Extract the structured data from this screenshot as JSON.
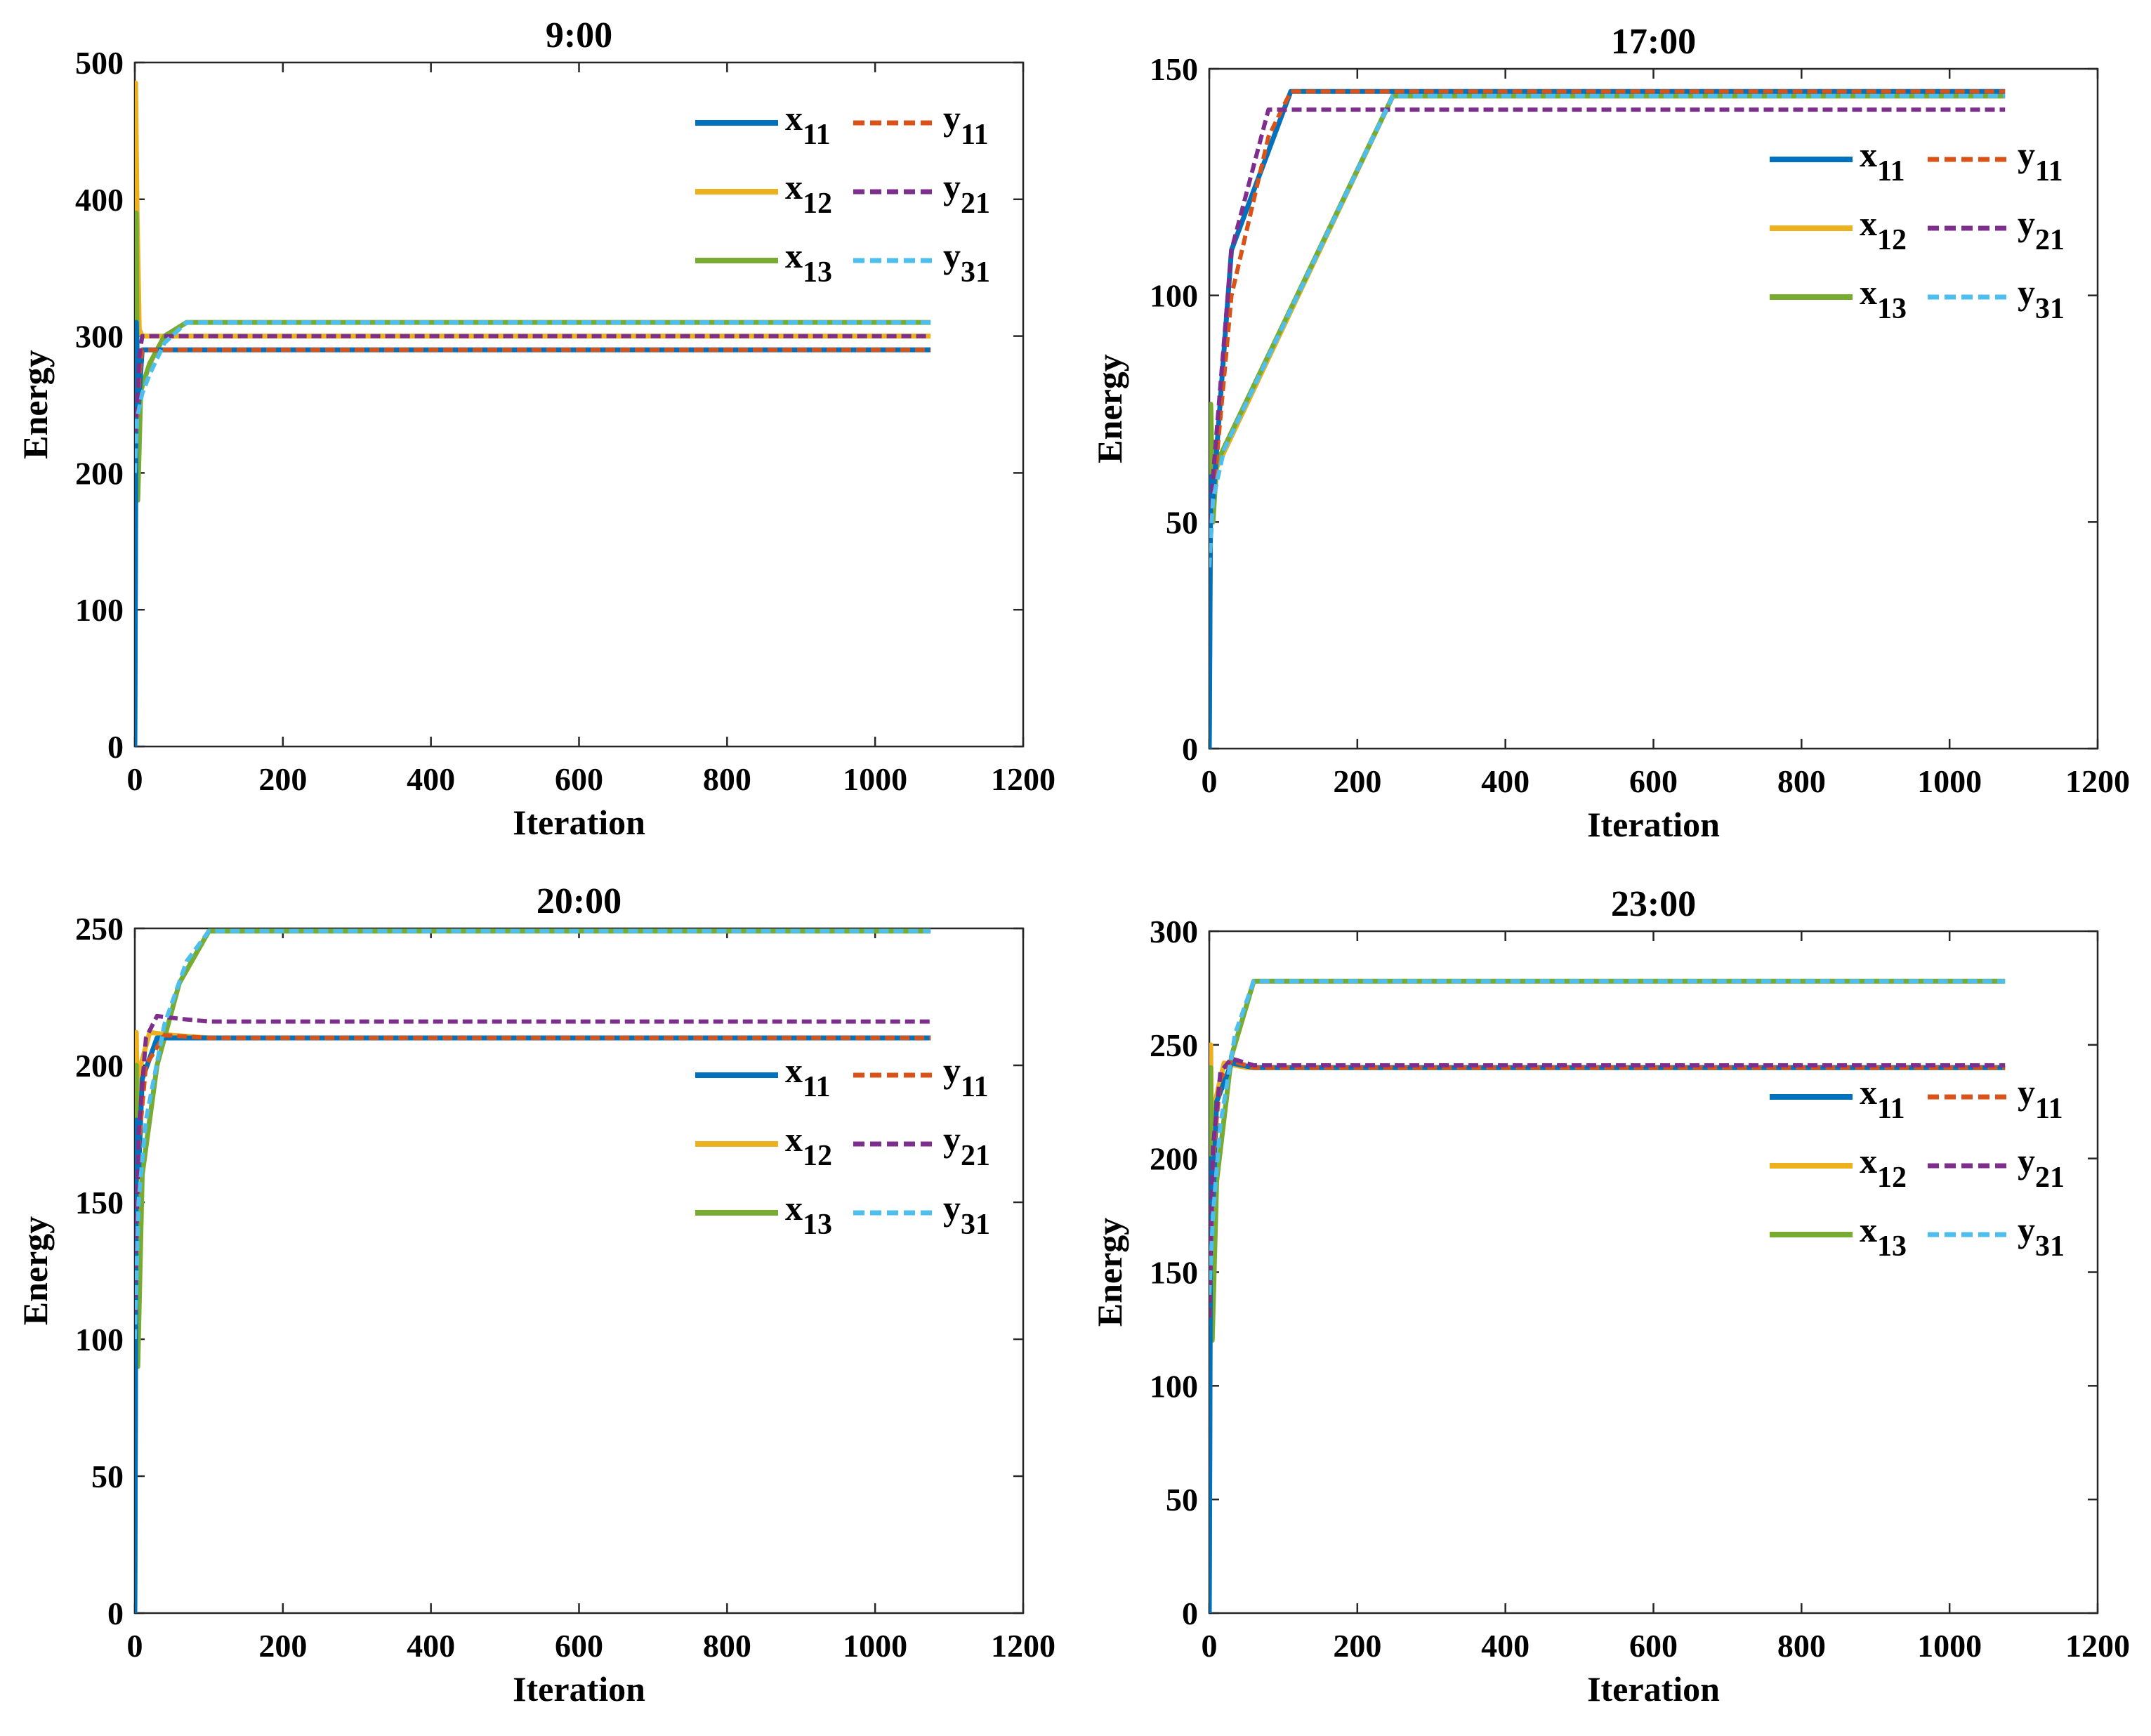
{
  "colors": {
    "x11": "#0072BD",
    "x12": "#EDB120",
    "x13": "#77AC30",
    "y11": "#D95319",
    "y21": "#7E2F8E",
    "y31": "#4DBEEE"
  },
  "chart_data": [
    {
      "type": "line",
      "title": "9:00",
      "xlabel": "Iteration",
      "ylabel": "Energy",
      "xlim": [
        0,
        1200
      ],
      "ylim": [
        0,
        500
      ],
      "xticks": [
        0,
        200,
        400,
        600,
        800,
        1000,
        1200
      ],
      "yticks": [
        0,
        100,
        200,
        300,
        400,
        500
      ],
      "legend_position": "top-right",
      "series": [
        {
          "key": "x12",
          "name": "x",
          "sub": "12",
          "style": "solid",
          "points": [
            [
              0,
              0
            ],
            [
              1,
              485
            ],
            [
              3,
              390
            ],
            [
              6,
              305
            ],
            [
              10,
              300
            ],
            [
              1075,
              300
            ]
          ]
        },
        {
          "key": "x13",
          "name": "x",
          "sub": "13",
          "style": "solid",
          "points": [
            [
              0,
              0
            ],
            [
              2,
              390
            ],
            [
              4,
              180
            ],
            [
              8,
              260
            ],
            [
              20,
              280
            ],
            [
              40,
              300
            ],
            [
              70,
              310
            ],
            [
              1075,
              310
            ]
          ]
        },
        {
          "key": "x11",
          "name": "x",
          "sub": "11",
          "style": "solid",
          "points": [
            [
              0,
              0
            ],
            [
              2,
              310
            ],
            [
              5,
              250
            ],
            [
              10,
              290
            ],
            [
              1075,
              290
            ]
          ]
        },
        {
          "key": "y11",
          "name": "y",
          "sub": "11",
          "style": "dashed",
          "points": [
            [
              0,
              230
            ],
            [
              3,
              240
            ],
            [
              6,
              270
            ],
            [
              10,
              290
            ],
            [
              1075,
              290
            ]
          ]
        },
        {
          "key": "y21",
          "name": "y",
          "sub": "21",
          "style": "dashed",
          "points": [
            [
              0,
              230
            ],
            [
              3,
              250
            ],
            [
              6,
              285
            ],
            [
              10,
              300
            ],
            [
              1075,
              300
            ]
          ]
        },
        {
          "key": "y31",
          "name": "y",
          "sub": "31",
          "style": "dashed",
          "points": [
            [
              0,
              200
            ],
            [
              3,
              240
            ],
            [
              10,
              258
            ],
            [
              20,
              272
            ],
            [
              40,
              295
            ],
            [
              70,
              310
            ],
            [
              1075,
              310
            ]
          ]
        }
      ]
    },
    {
      "type": "line",
      "title": "17:00",
      "xlabel": "Iteration",
      "ylabel": "Energy",
      "xlim": [
        0,
        1200
      ],
      "ylim": [
        0,
        150
      ],
      "xticks": [
        0,
        200,
        400,
        600,
        800,
        1000,
        1200
      ],
      "yticks": [
        0,
        50,
        100,
        150
      ],
      "legend_position": "right",
      "series": [
        {
          "key": "x12",
          "name": "x",
          "sub": "12",
          "style": "solid",
          "points": [
            [
              0,
              0
            ],
            [
              2,
              75
            ],
            [
              5,
              52
            ],
            [
              10,
              62
            ],
            [
              248,
              144
            ],
            [
              1075,
              144
            ]
          ]
        },
        {
          "key": "x13",
          "name": "x",
          "sub": "13",
          "style": "solid",
          "points": [
            [
              0,
              0
            ],
            [
              2,
              76
            ],
            [
              5,
              50
            ],
            [
              10,
              63
            ],
            [
              248,
              144
            ],
            [
              1075,
              144
            ]
          ]
        },
        {
          "key": "x11",
          "name": "x",
          "sub": "11",
          "style": "solid",
          "points": [
            [
              0,
              0
            ],
            [
              2,
              60
            ],
            [
              5,
              55
            ],
            [
              30,
              110
            ],
            [
              110,
              145
            ],
            [
              1075,
              145
            ]
          ]
        },
        {
          "key": "y11",
          "name": "y",
          "sub": "11",
          "style": "dashed",
          "points": [
            [
              0,
              40
            ],
            [
              5,
              55
            ],
            [
              30,
              100
            ],
            [
              80,
              135
            ],
            [
              110,
              145
            ],
            [
              1075,
              145
            ]
          ]
        },
        {
          "key": "y21",
          "name": "y",
          "sub": "21",
          "style": "dashed",
          "points": [
            [
              0,
              40
            ],
            [
              5,
              60
            ],
            [
              30,
              110
            ],
            [
              80,
              141
            ],
            [
              1075,
              141
            ]
          ]
        },
        {
          "key": "y31",
          "name": "y",
          "sub": "31",
          "style": "dashed",
          "points": [
            [
              0,
              40
            ],
            [
              5,
              55
            ],
            [
              20,
              66
            ],
            [
              248,
              144
            ],
            [
              1075,
              144
            ]
          ]
        }
      ]
    },
    {
      "type": "line",
      "title": "20:00",
      "xlabel": "Iteration",
      "ylabel": "Energy",
      "xlim": [
        0,
        1200
      ],
      "ylim": [
        0,
        250
      ],
      "xticks": [
        0,
        200,
        400,
        600,
        800,
        1000,
        1200
      ],
      "yticks": [
        0,
        50,
        100,
        150,
        200,
        250
      ],
      "legend_position": "right",
      "series": [
        {
          "key": "x12",
          "name": "x",
          "sub": "12",
          "style": "solid",
          "points": [
            [
              0,
              0
            ],
            [
              2,
              212
            ],
            [
              4,
              170
            ],
            [
              8,
              200
            ],
            [
              20,
              212
            ],
            [
              50,
              211
            ],
            [
              100,
              210
            ],
            [
              1075,
              210
            ]
          ]
        },
        {
          "key": "x13",
          "name": "x",
          "sub": "13",
          "style": "solid",
          "points": [
            [
              0,
              0
            ],
            [
              2,
              200
            ],
            [
              4,
              90
            ],
            [
              10,
              160
            ],
            [
              30,
              200
            ],
            [
              60,
              230
            ],
            [
              100,
              249
            ],
            [
              1075,
              249
            ]
          ]
        },
        {
          "key": "x11",
          "name": "x",
          "sub": "11",
          "style": "solid",
          "points": [
            [
              0,
              0
            ],
            [
              2,
              180
            ],
            [
              5,
              160
            ],
            [
              10,
              195
            ],
            [
              30,
              210
            ],
            [
              1075,
              210
            ]
          ]
        },
        {
          "key": "y11",
          "name": "y",
          "sub": "11",
          "style": "dashed",
          "points": [
            [
              0,
              110
            ],
            [
              5,
              170
            ],
            [
              15,
              200
            ],
            [
              40,
              211
            ],
            [
              100,
              210
            ],
            [
              1075,
              210
            ]
          ]
        },
        {
          "key": "y21",
          "name": "y",
          "sub": "21",
          "style": "dashed",
          "points": [
            [
              0,
              110
            ],
            [
              5,
              175
            ],
            [
              15,
              210
            ],
            [
              30,
              218
            ],
            [
              60,
              217
            ],
            [
              100,
              216
            ],
            [
              1075,
              216
            ]
          ]
        },
        {
          "key": "y31",
          "name": "y",
          "sub": "31",
          "style": "dashed",
          "points": [
            [
              0,
              100
            ],
            [
              5,
              150
            ],
            [
              15,
              180
            ],
            [
              40,
              215
            ],
            [
              70,
              238
            ],
            [
              100,
              249
            ],
            [
              1075,
              249
            ]
          ]
        }
      ]
    },
    {
      "type": "line",
      "title": "23:00",
      "xlabel": "Iteration",
      "ylabel": "Energy",
      "xlim": [
        0,
        1200
      ],
      "ylim": [
        0,
        300
      ],
      "xticks": [
        0,
        200,
        400,
        600,
        800,
        1000,
        1200
      ],
      "yticks": [
        0,
        50,
        100,
        150,
        200,
        250,
        300
      ],
      "legend_position": "right",
      "series": [
        {
          "key": "x12",
          "name": "x",
          "sub": "12",
          "style": "solid",
          "points": [
            [
              0,
              0
            ],
            [
              2,
              250
            ],
            [
              4,
              140
            ],
            [
              8,
              225
            ],
            [
              20,
              242
            ],
            [
              50,
              240
            ],
            [
              1075,
              240
            ]
          ]
        },
        {
          "key": "x13",
          "name": "x",
          "sub": "13",
          "style": "solid",
          "points": [
            [
              0,
              0
            ],
            [
              2,
              240
            ],
            [
              4,
              120
            ],
            [
              10,
              190
            ],
            [
              30,
              245
            ],
            [
              60,
              278
            ],
            [
              1075,
              278
            ]
          ]
        },
        {
          "key": "x11",
          "name": "x",
          "sub": "11",
          "style": "solid",
          "points": [
            [
              0,
              0
            ],
            [
              2,
              200
            ],
            [
              5,
              180
            ],
            [
              10,
              225
            ],
            [
              30,
              242
            ],
            [
              60,
              240
            ],
            [
              1075,
              240
            ]
          ]
        },
        {
          "key": "y11",
          "name": "y",
          "sub": "11",
          "style": "dashed",
          "points": [
            [
              0,
              130
            ],
            [
              5,
              200
            ],
            [
              15,
              235
            ],
            [
              30,
              243
            ],
            [
              60,
              240
            ],
            [
              1075,
              240
            ]
          ]
        },
        {
          "key": "y21",
          "name": "y",
          "sub": "21",
          "style": "dashed",
          "points": [
            [
              0,
              130
            ],
            [
              5,
              205
            ],
            [
              15,
              238
            ],
            [
              30,
              244
            ],
            [
              60,
              241
            ],
            [
              1075,
              241
            ]
          ]
        },
        {
          "key": "y31",
          "name": "y",
          "sub": "31",
          "style": "dashed",
          "points": [
            [
              0,
              140
            ],
            [
              5,
              175
            ],
            [
              15,
              215
            ],
            [
              35,
              255
            ],
            [
              60,
              278
            ],
            [
              1075,
              278
            ]
          ]
        }
      ]
    }
  ]
}
